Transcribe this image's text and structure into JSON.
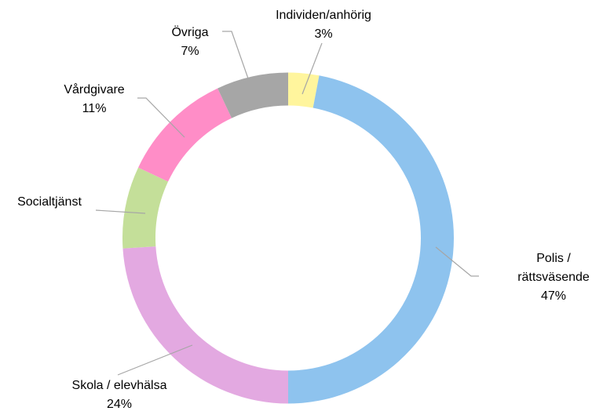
{
  "chart_data": {
    "type": "donut",
    "categories": [
      "Individen/anhörig",
      "Polis / rättsväsende",
      "Skola / elevhälsa",
      "Socialtjänst",
      "Vårdgivare",
      "Övriga"
    ],
    "values": [
      3,
      47,
      24,
      8,
      11,
      7
    ],
    "value_labels": [
      "3%",
      "47%",
      "24%",
      null,
      "11%",
      "7%"
    ],
    "colors": [
      "#fff59d",
      "#8ec3ee",
      "#e3a9e1",
      "#c4df99",
      "#ff8dc7",
      "#a6a6a6"
    ]
  }
}
